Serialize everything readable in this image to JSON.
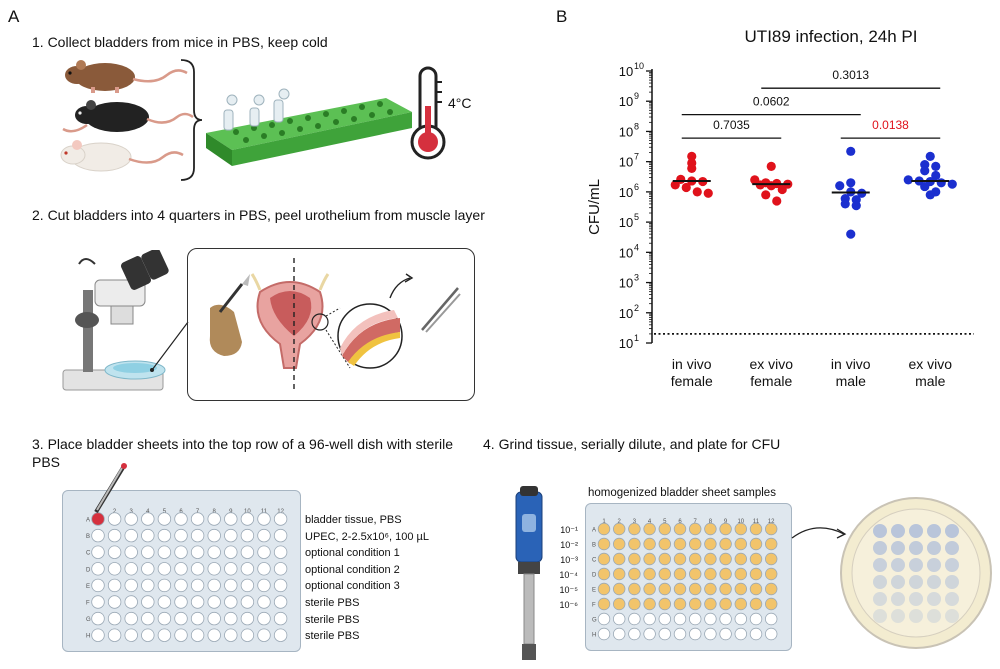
{
  "panel_a": {
    "letter": "A",
    "steps": [
      "1. Collect bladders from mice in PBS, keep cold",
      "2. Cut bladders into 4 quarters in PBS, peel urothelium from muscle layer",
      "3. Place bladder sheets into the top row of a 96-well dish with sterile PBS",
      "4. Grind tissue, serially dilute, and plate for CFU"
    ],
    "thermometer_label": "4°C",
    "plate_rows": [
      "A",
      "B",
      "C",
      "D",
      "E",
      "F",
      "G",
      "H"
    ],
    "plate_cols": [
      "1",
      "2",
      "3",
      "4",
      "5",
      "6",
      "7",
      "8",
      "9",
      "10",
      "11",
      "12"
    ],
    "plate3_row_labels": [
      "bladder tissue, PBS",
      "UPEC, 2-2.5x10⁶, 100 µL",
      "optional condition 1",
      "optional condition 2",
      "optional condition 3",
      "sterile PBS",
      "sterile PBS",
      "sterile PBS"
    ],
    "homogenized_title": "homogenized bladder sheet samples",
    "dilutions": [
      "10⁻¹",
      "10⁻²",
      "10⁻³",
      "10⁻⁴",
      "10⁻⁵",
      "10⁻⁶"
    ],
    "colors": {
      "plate_green": "#3fa33a",
      "well_orange": "#f2c46b",
      "plate_frame": "#c9d6e2",
      "petri_spot": "#b9c5da"
    }
  },
  "panel_b": {
    "letter": "B",
    "chart_data": {
      "type": "scatter",
      "title": "UTI89 infection, 24h PI",
      "ylabel": "CFU/mL",
      "y_scale": "log10",
      "ylim": [
        10,
        10000000000
      ],
      "yticks": [
        {
          "value": 10,
          "label": "10",
          "exp": "1"
        },
        {
          "value": 100,
          "label": "10",
          "exp": "2"
        },
        {
          "value": 1000,
          "label": "10",
          "exp": "3"
        },
        {
          "value": 10000,
          "label": "10",
          "exp": "4"
        },
        {
          "value": 100000,
          "label": "10",
          "exp": "5"
        },
        {
          "value": 1000000,
          "label": "10",
          "exp": "6"
        },
        {
          "value": 10000000,
          "label": "10",
          "exp": "7"
        },
        {
          "value": 100000000,
          "label": "10",
          "exp": "8"
        },
        {
          "value": 1000000000,
          "label": "10",
          "exp": "9"
        },
        {
          "value": 10000000000,
          "label": "10",
          "exp": "10"
        }
      ],
      "detection_limit": 20,
      "groups": [
        {
          "name_line1": "in vivo",
          "name_line2": "female",
          "color": "#e0121b",
          "median": 2300000,
          "values": [
            15000000,
            9000000,
            6000000,
            2600000,
            2300000,
            2200000,
            1700000,
            1400000,
            1000000,
            900000
          ]
        },
        {
          "name_line1": "ex vivo",
          "name_line2": "female",
          "color": "#e0121b",
          "median": 1800000,
          "values": [
            7000000,
            2500000,
            2000000,
            1900000,
            1800000,
            1700000,
            1600000,
            1200000,
            800000,
            500000
          ]
        },
        {
          "name_line1": "in vivo",
          "name_line2": "male",
          "color": "#1b2fcf",
          "median": 950000,
          "values": [
            22000000,
            2000000,
            1600000,
            1000000,
            900000,
            600000,
            550000,
            400000,
            350000,
            40000
          ]
        },
        {
          "name_line1": "ex vivo",
          "name_line2": "male",
          "color": "#1b2fcf",
          "median": 2300000,
          "values": [
            15000000,
            8000000,
            7000000,
            5000000,
            3500000,
            2500000,
            2300000,
            2200000,
            2000000,
            1800000,
            1500000,
            1000000,
            800000
          ]
        }
      ],
      "comparisons": [
        {
          "from": 0,
          "to": 1,
          "p": "0.7035",
          "color": "#111111"
        },
        {
          "from": 2,
          "to": 3,
          "p": "0.0138",
          "color": "#e0121b"
        },
        {
          "from": 0,
          "to": 2,
          "p": "0.0602",
          "color": "#111111"
        },
        {
          "from": 1,
          "to": 3,
          "p": "0.3013",
          "color": "#111111"
        }
      ]
    }
  }
}
